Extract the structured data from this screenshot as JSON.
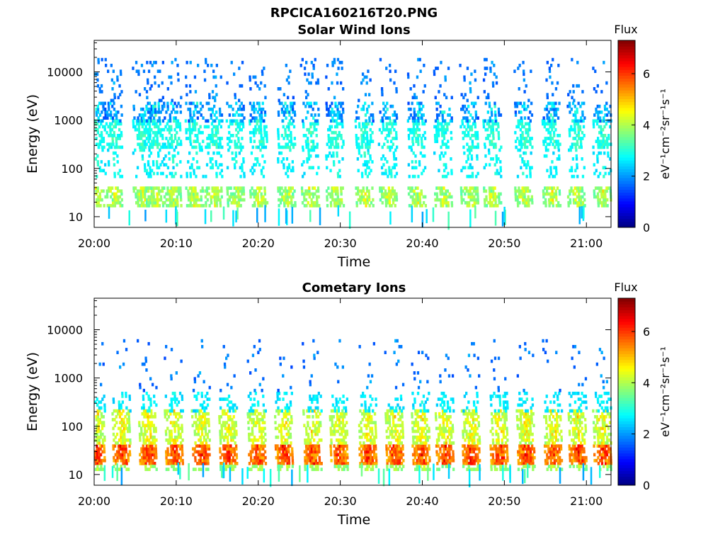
{
  "figure": {
    "title": "RPCICA160216T20.PNG"
  },
  "chart_data": [
    {
      "type": "heatmap",
      "title": "Solar Wind Ions",
      "xlabel": "Time",
      "ylabel": "Energy (eV)",
      "x_ticks": [
        "20:00",
        "20:10",
        "20:20",
        "20:30",
        "20:40",
        "20:50",
        "21:00"
      ],
      "x_tick_minutes": [
        0,
        10,
        20,
        30,
        40,
        50,
        60
      ],
      "xlim_minutes": [
        0,
        63
      ],
      "y_scale": "log",
      "y_ticks": [
        "10",
        "100",
        "1000",
        "10000"
      ],
      "y_tick_values": [
        10,
        100,
        1000,
        10000
      ],
      "ylim": [
        6,
        45000
      ],
      "colorbar": {
        "label_top": "Flux",
        "label": "eV⁻¹cm⁻²sr⁻¹s⁻¹",
        "ticks": [
          "0",
          "2",
          "4",
          "6"
        ],
        "tick_values": [
          0,
          2,
          4,
          6
        ],
        "range": [
          0,
          7.3
        ],
        "colormap": "jet"
      },
      "pattern": {
        "sweep_times_minutes": [
          0.2,
          2.4,
          5.9,
          7.4,
          9.6,
          12.3,
          14.6,
          17.3,
          20.1,
          23.5,
          26.4,
          29.4,
          33.0,
          35.9,
          39.4,
          42.6,
          45.8,
          48.6,
          52.4,
          55.8,
          58.8,
          62.0
        ],
        "bands": [
          {
            "e_min": 17,
            "e_max": 40,
            "flux_min": 3.0,
            "flux_max": 4.7,
            "density": 0.8
          },
          {
            "e_min": 60,
            "e_max": 320,
            "flux_min": 2.2,
            "flux_max": 3.2,
            "density": 0.25
          },
          {
            "e_min": 250,
            "e_max": 1000,
            "flux_min": 2.4,
            "flux_max": 3.4,
            "density": 0.55
          },
          {
            "e_min": 900,
            "e_max": 2500,
            "flux_min": 1.0,
            "flux_max": 3.2,
            "density": 0.45
          },
          {
            "e_min": 2500,
            "e_max": 20000,
            "flux_min": 1.3,
            "flux_max": 2.2,
            "density": 0.12
          }
        ]
      }
    },
    {
      "type": "heatmap",
      "title": "Cometary Ions",
      "xlabel": "Time",
      "ylabel": "Energy (eV)",
      "x_ticks": [
        "20:00",
        "20:10",
        "20:20",
        "20:30",
        "20:40",
        "20:50",
        "21:00"
      ],
      "x_tick_minutes": [
        0,
        10,
        20,
        30,
        40,
        50,
        60
      ],
      "xlim_minutes": [
        0,
        63
      ],
      "y_scale": "log",
      "y_ticks": [
        "10",
        "100",
        "1000",
        "10000"
      ],
      "y_tick_values": [
        10,
        100,
        1000,
        10000
      ],
      "ylim": [
        6,
        45000
      ],
      "colorbar": {
        "label_top": "Flux",
        "label": "eV⁻¹cm⁻²sr⁻¹s⁻¹",
        "ticks": [
          "0",
          "2",
          "4",
          "6"
        ],
        "tick_values": [
          0,
          2,
          4,
          6
        ],
        "range": [
          0,
          7.3
        ],
        "colormap": "jet"
      },
      "pattern": {
        "sweep_times_minutes": [
          0.3,
          3.4,
          6.6,
          9.8,
          13.1,
          16.4,
          19.9,
          23.2,
          26.7,
          29.9,
          33.4,
          36.7,
          39.9,
          42.8,
          46.0,
          49.4,
          52.7,
          56.0,
          59.0,
          62.0
        ],
        "bands": [
          {
            "e_min": 17,
            "e_max": 40,
            "flux_min": 4.6,
            "flux_max": 6.6,
            "density": 0.95
          },
          {
            "e_min": 12,
            "e_max": 17,
            "flux_min": 3.2,
            "flux_max": 4.4,
            "density": 0.6
          },
          {
            "e_min": 40,
            "e_max": 220,
            "flux_min": 3.4,
            "flux_max": 5.0,
            "density": 0.7
          },
          {
            "e_min": 200,
            "e_max": 500,
            "flux_min": 2.2,
            "flux_max": 3.0,
            "density": 0.35
          },
          {
            "e_min": 500,
            "e_max": 6000,
            "flux_min": 1.2,
            "flux_max": 2.2,
            "density": 0.06
          }
        ]
      }
    }
  ]
}
